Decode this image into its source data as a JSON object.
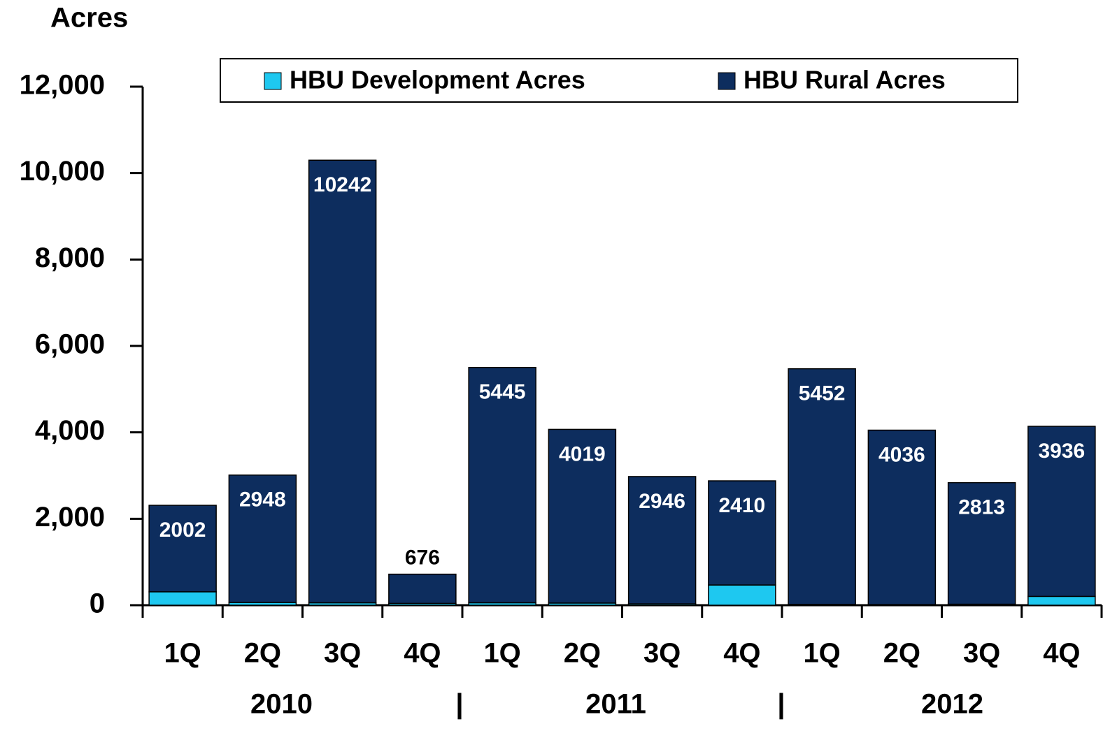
{
  "chart_data": {
    "type": "stacked_bar",
    "y_label": "Acres",
    "categories": [
      "1Q",
      "2Q",
      "3Q",
      "4Q",
      "1Q",
      "2Q",
      "3Q",
      "4Q",
      "1Q",
      "2Q",
      "3Q",
      "4Q"
    ],
    "year_groups": [
      {
        "label": "2010",
        "span": 4
      },
      {
        "label": "2011",
        "span": 4
      },
      {
        "label": "2012",
        "span": 4
      }
    ],
    "group_separator": "|",
    "series": [
      {
        "name": "HBU Development Acres",
        "color": "#1ec8f0",
        "values": [
          310,
          64,
          56,
          42,
          57,
          50,
          31,
          468,
          20,
          15,
          23,
          204
        ]
      },
      {
        "name": "HBU Rural Acres",
        "color": "#0d2d5e",
        "values": [
          2002,
          2948,
          10242,
          676,
          5445,
          4019,
          2946,
          2410,
          5452,
          4036,
          2813,
          3936
        ]
      }
    ],
    "ylim": [
      0,
      12000
    ],
    "yticks": [
      0,
      {
        "value": 2000,
        "label": "2,000"
      },
      {
        "value": 4000,
        "label": "4,000"
      },
      {
        "value": 6000,
        "label": "6,000"
      },
      {
        "value": 8000,
        "label": "8,000"
      },
      {
        "value": 10000,
        "label": "10,000"
      },
      {
        "value": 12000,
        "label": "12,000"
      }
    ],
    "grid": false,
    "legend": "top"
  }
}
